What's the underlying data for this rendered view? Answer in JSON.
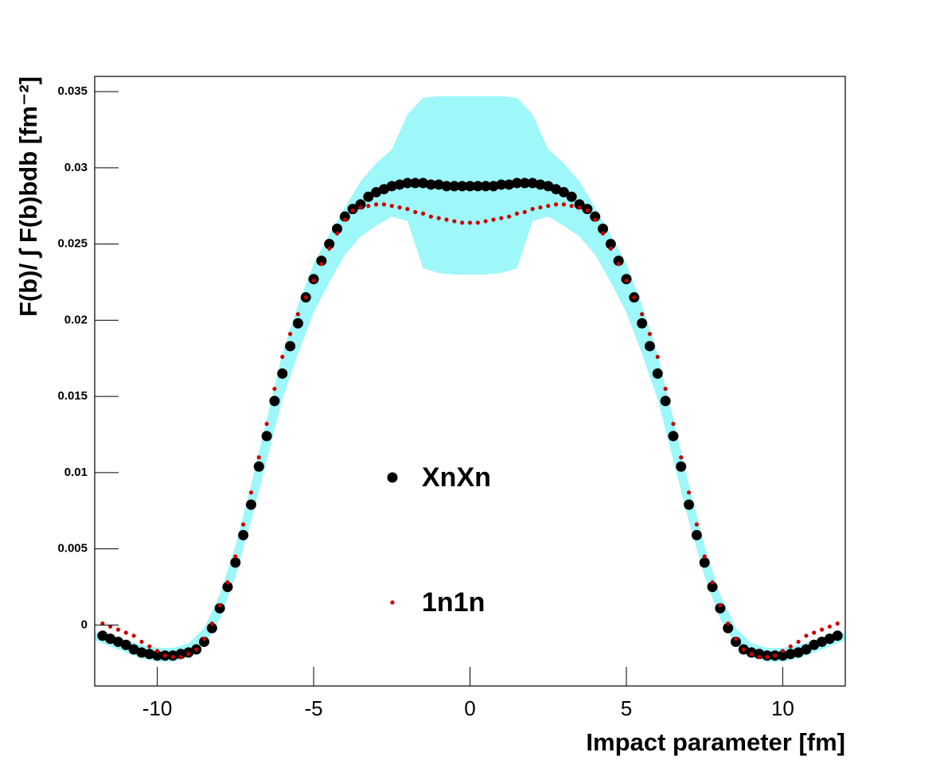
{
  "chart_data": {
    "type": "scatter",
    "xlabel": "Impact parameter [fm]",
    "ylabel": "F(b)/ ∫ F(b)bdb [fm⁻²]",
    "xlim": [
      -12,
      12
    ],
    "ylim": [
      -0.004,
      0.036
    ],
    "xticks": [
      -10,
      -5,
      0,
      5,
      10
    ],
    "yticks": [
      0,
      0.005,
      0.01,
      0.015,
      0.02,
      0.025,
      0.03,
      0.035
    ],
    "legend": "center",
    "x": [
      -11.75,
      -11.5,
      -11.25,
      -11,
      -10.75,
      -10.5,
      -10.25,
      -10,
      -9.75,
      -9.5,
      -9.25,
      -9,
      -8.75,
      -8.5,
      -8.25,
      -8,
      -7.75,
      -7.5,
      -7.25,
      -7,
      -6.75,
      -6.5,
      -6.25,
      -6,
      -5.75,
      -5.5,
      -5.25,
      -5,
      -4.75,
      -4.5,
      -4.25,
      -4,
      -3.75,
      -3.5,
      -3.25,
      -3,
      -2.75,
      -2.5,
      -2.25,
      -2,
      -1.75,
      -1.5,
      -1.25,
      -1,
      -0.75,
      -0.5,
      -0.25,
      0,
      0.25,
      0.5,
      0.75,
      1,
      1.25,
      1.5,
      1.75,
      2,
      2.25,
      2.5,
      2.75,
      3,
      3.25,
      3.5,
      3.75,
      4,
      4.25,
      4.5,
      4.75,
      5,
      5.25,
      5.5,
      5.75,
      6,
      6.25,
      6.5,
      6.75,
      7,
      7.25,
      7.5,
      7.75,
      8,
      8.25,
      8.5,
      8.75,
      9,
      9.25,
      9.5,
      9.75,
      10,
      10.25,
      10.5,
      10.75,
      11,
      11.25,
      11.5,
      11.75
    ],
    "series": [
      {
        "name": "XnXn",
        "color": "#000000",
        "marker_size": 6.5,
        "values": [
          -0.0007,
          -0.0009,
          -0.0011,
          -0.0013,
          -0.0016,
          -0.0018,
          -0.0019,
          -0.002,
          -0.002,
          -0.002,
          -0.0019,
          -0.0018,
          -0.0016,
          -0.0011,
          -0.0002,
          0.0011,
          0.0025,
          0.0041,
          0.0059,
          0.0079,
          0.0104,
          0.0124,
          0.0147,
          0.0165,
          0.0183,
          0.0198,
          0.0215,
          0.0227,
          0.0239,
          0.025,
          0.026,
          0.0268,
          0.0273,
          0.0276,
          0.0281,
          0.0284,
          0.0286,
          0.0288,
          0.0289,
          0.029,
          0.029,
          0.029,
          0.0289,
          0.0289,
          0.0288,
          0.0288,
          0.0288,
          0.0288,
          0.0288,
          0.0288,
          0.0288,
          0.0289,
          0.0289,
          0.029,
          0.029,
          0.029,
          0.0289,
          0.0288,
          0.0286,
          0.0284,
          0.0281,
          0.0276,
          0.0273,
          0.0268,
          0.026,
          0.025,
          0.0239,
          0.0227,
          0.0215,
          0.0198,
          0.0183,
          0.0165,
          0.0147,
          0.0124,
          0.0104,
          0.0079,
          0.0059,
          0.0041,
          0.0025,
          0.0011,
          -0.0002,
          -0.0011,
          -0.0016,
          -0.0018,
          -0.0019,
          -0.002,
          -0.002,
          -0.002,
          -0.0019,
          -0.0018,
          -0.0016,
          -0.0013,
          -0.0011,
          -0.0009,
          -0.0007
        ]
      },
      {
        "name": "1n1n",
        "color": "#cc0000",
        "marker_size": 2.6,
        "values": [
          0.0001,
          -0.0001,
          -0.0003,
          -0.0005,
          -0.0007,
          -0.0011,
          -0.0014,
          -0.0017,
          -0.002,
          -0.0021,
          -0.0021,
          -0.0019,
          -0.0016,
          -0.0009,
          0.0001,
          0.0013,
          0.0028,
          0.0045,
          0.0066,
          0.0087,
          0.011,
          0.0132,
          0.0155,
          0.0176,
          0.0191,
          0.0204,
          0.0215,
          0.0226,
          0.0237,
          0.0247,
          0.0257,
          0.0266,
          0.0272,
          0.0274,
          0.0275,
          0.0276,
          0.0276,
          0.0275,
          0.0274,
          0.0273,
          0.0271,
          0.027,
          0.0268,
          0.0267,
          0.0266,
          0.0265,
          0.0264,
          0.0264,
          0.0264,
          0.0265,
          0.0266,
          0.0267,
          0.0268,
          0.027,
          0.0271,
          0.0273,
          0.0274,
          0.0275,
          0.0276,
          0.0276,
          0.0275,
          0.0274,
          0.0272,
          0.0266,
          0.0257,
          0.0247,
          0.0237,
          0.0226,
          0.0215,
          0.0204,
          0.0191,
          0.0176,
          0.0155,
          0.0132,
          0.011,
          0.0087,
          0.0066,
          0.0045,
          0.0028,
          0.0013,
          0.0001,
          -0.0009,
          -0.0016,
          -0.0019,
          -0.0021,
          -0.0021,
          -0.002,
          -0.0017,
          -0.0014,
          -0.0011,
          -0.0007,
          -0.0005,
          -0.0003,
          -0.0001,
          0.0001
        ]
      }
    ],
    "band": {
      "color": "#9ef7f9",
      "x": [
        -12,
        -11.5,
        -11,
        -10.5,
        -10,
        -9.5,
        -9,
        -8.5,
        -8,
        -7.5,
        -7,
        -6.5,
        -6,
        -5.5,
        -5,
        -4.5,
        -4,
        -3.5,
        -3,
        -2.5,
        -2,
        -1.5,
        -1,
        -0.5,
        0,
        0.5,
        1,
        1.5,
        2,
        2.5,
        3,
        3.5,
        4,
        4.5,
        5,
        5.5,
        6,
        6.5,
        7,
        7.5,
        8,
        8.5,
        9,
        9.5,
        10,
        10.5,
        11,
        11.5,
        12
      ],
      "upper": [
        -0.0005,
        -0.0007,
        -0.001,
        -0.0013,
        -0.0015,
        -0.0015,
        -0.0012,
        -0.0002,
        0.002,
        0.0052,
        0.0092,
        0.0135,
        0.0178,
        0.021,
        0.0237,
        0.0256,
        0.0274,
        0.0291,
        0.0303,
        0.0312,
        0.0335,
        0.0346,
        0.0347,
        0.0347,
        0.0347,
        0.0347,
        0.0347,
        0.0346,
        0.0335,
        0.0312,
        0.0303,
        0.0291,
        0.0274,
        0.0256,
        0.0237,
        0.021,
        0.0178,
        0.0135,
        0.0092,
        0.0052,
        0.002,
        -0.0002,
        -0.0012,
        -0.0015,
        -0.0015,
        -0.0013,
        -0.001,
        -0.0007,
        -0.0005
      ],
      "lower": [
        -0.001,
        -0.0014,
        -0.0018,
        -0.0022,
        -0.0024,
        -0.0024,
        -0.0021,
        -0.0013,
        0.0004,
        0.0032,
        0.0068,
        0.0108,
        0.0148,
        0.0178,
        0.0205,
        0.0225,
        0.0243,
        0.0255,
        0.0262,
        0.0268,
        0.0265,
        0.0234,
        0.0231,
        0.023,
        0.023,
        0.023,
        0.0231,
        0.0234,
        0.0265,
        0.0268,
        0.0262,
        0.0255,
        0.0243,
        0.0225,
        0.0205,
        0.0178,
        0.0148,
        0.0108,
        0.0068,
        0.0032,
        0.0004,
        -0.0013,
        -0.0021,
        -0.0024,
        -0.0024,
        -0.0022,
        -0.0018,
        -0.0014,
        -0.001
      ]
    }
  }
}
